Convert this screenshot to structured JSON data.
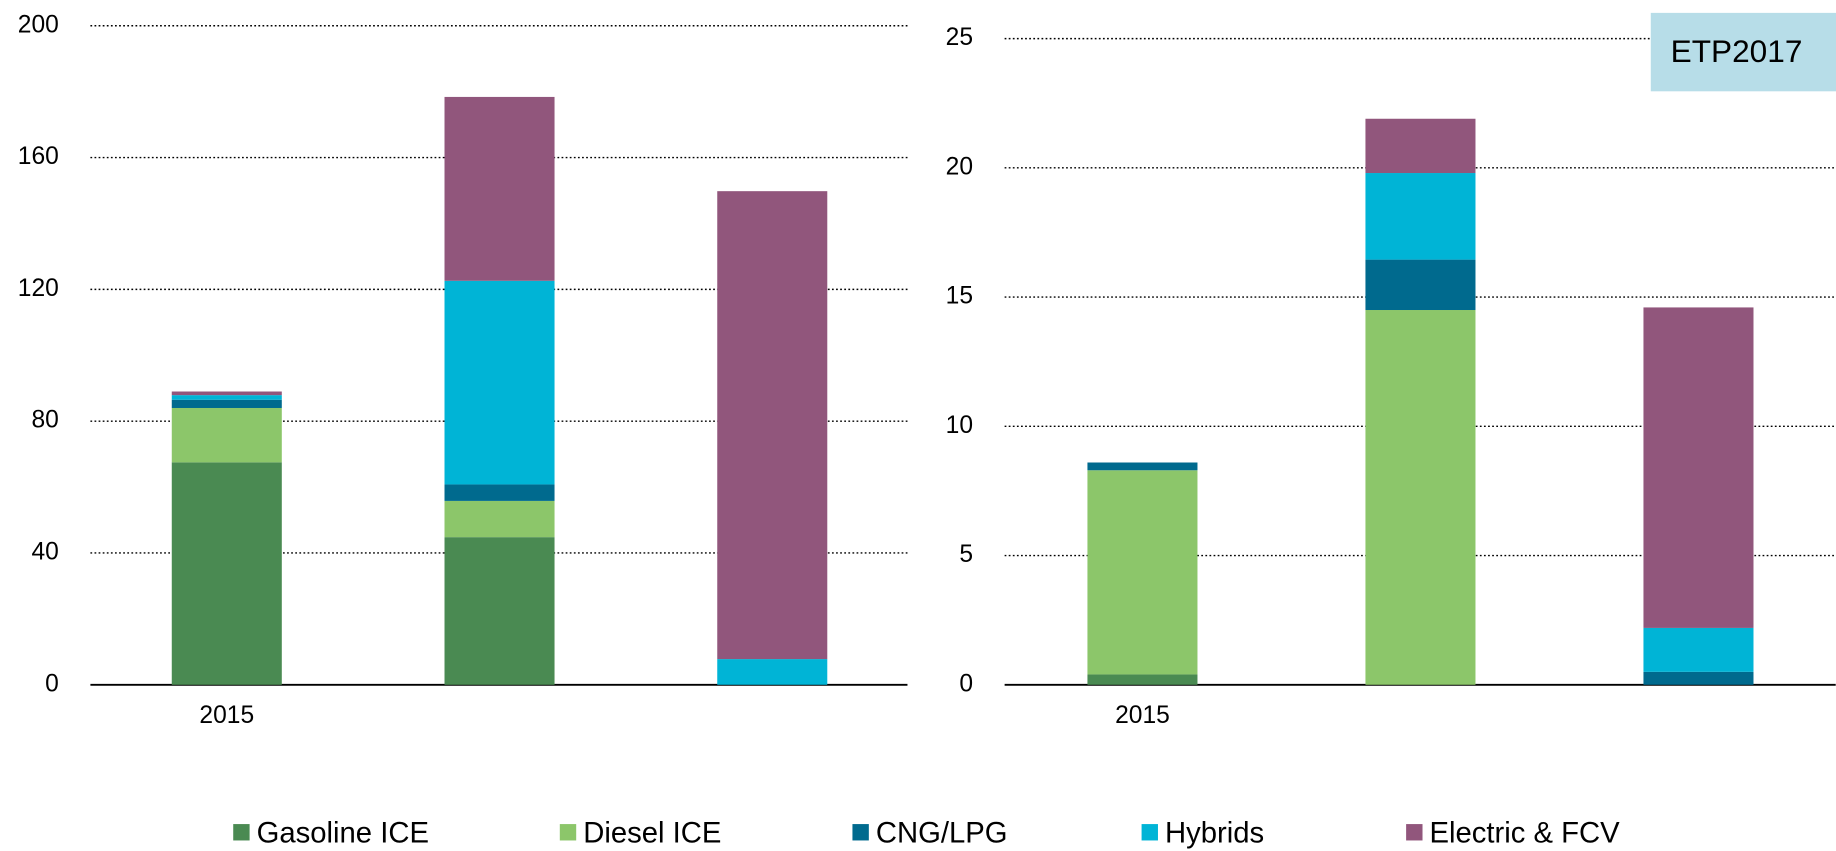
{
  "chart_data": [
    {
      "type": "bar",
      "stacked": true,
      "categories": [
        "2015",
        null,
        null
      ],
      "ylim": [
        0,
        200
      ],
      "yticks": [
        0,
        40,
        80,
        120,
        160,
        200
      ],
      "grid": true,
      "series": [
        {
          "name": "Gasoline ICE",
          "color": "#4a8a52",
          "values": [
            67.5,
            44.8,
            0
          ]
        },
        {
          "name": "Diesel ICE",
          "color": "#8cc66a",
          "values": [
            16.5,
            11,
            0
          ]
        },
        {
          "name": "CNG/LPG",
          "color": "#006a8e",
          "values": [
            2.5,
            5,
            0
          ]
        },
        {
          "name": "Hybrids",
          "color": "#00b4d6",
          "values": [
            1.4,
            61.8,
            7.8
          ]
        },
        {
          "name": "Electric & FCV",
          "color": "#91567c",
          "values": [
            1.1,
            55.8,
            142
          ]
        }
      ]
    },
    {
      "type": "bar",
      "stacked": true,
      "categories": [
        "2015",
        null,
        null
      ],
      "ylim": [
        0,
        25
      ],
      "yticks": [
        0,
        5,
        10,
        15,
        20,
        25
      ],
      "grid": true,
      "annotation": "ETP2017",
      "series": [
        {
          "name": "Gasoline ICE",
          "color": "#4a8a52",
          "values": [
            0.4,
            0,
            0
          ]
        },
        {
          "name": "Diesel ICE",
          "color": "#8cc66a",
          "values": [
            7.9,
            14.5,
            0
          ]
        },
        {
          "name": "CNG/LPG",
          "color": "#006a8e",
          "values": [
            0.3,
            1.95,
            0.5
          ]
        },
        {
          "name": "Hybrids",
          "color": "#00b4d6",
          "values": [
            0,
            3.35,
            1.7
          ]
        },
        {
          "name": "Electric & FCV",
          "color": "#91567c",
          "values": [
            0,
            2.1,
            12.4
          ]
        }
      ]
    }
  ]
}
